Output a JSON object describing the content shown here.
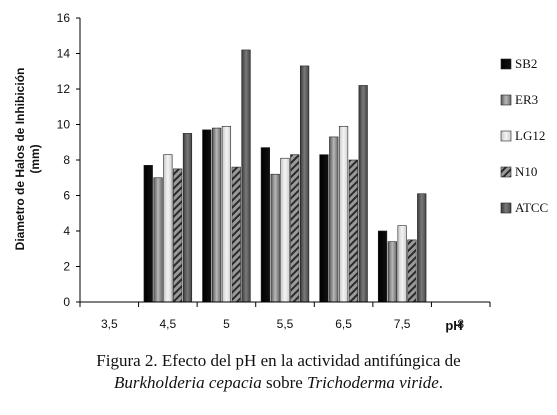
{
  "chart_data": {
    "type": "bar",
    "categories": [
      "3,5",
      "4,5",
      "5",
      "5,5",
      "6,5",
      "7,5",
      "8"
    ],
    "series": [
      {
        "name": "SB2",
        "values": [
          null,
          7.7,
          9.7,
          8.7,
          8.3,
          4.0,
          null
        ],
        "color": "#000000",
        "pattern": "solid"
      },
      {
        "name": "ER3",
        "values": [
          null,
          7.0,
          9.8,
          7.2,
          9.3,
          3.4,
          null
        ],
        "color": "#8a8a8a",
        "pattern": "gradient"
      },
      {
        "name": "LG12",
        "values": [
          null,
          8.3,
          9.9,
          8.1,
          9.9,
          4.3,
          null
        ],
        "color": "#e0e0e0",
        "pattern": "light"
      },
      {
        "name": "N10",
        "values": [
          null,
          7.5,
          7.6,
          8.3,
          8.0,
          3.5,
          null
        ],
        "color": "#707070",
        "pattern": "diagonal"
      },
      {
        "name": "ATCC",
        "values": [
          null,
          9.5,
          14.2,
          13.3,
          12.2,
          6.1,
          null
        ],
        "color": "#555555",
        "pattern": "dark"
      }
    ],
    "xlabel": "pH",
    "ylabel": "Diametro de Halos de Inhibición (mm)",
    "ylim": [
      0,
      16
    ],
    "yticks": [
      0,
      2,
      4,
      6,
      8,
      10,
      12,
      14,
      16
    ],
    "grid": false,
    "legend": "right"
  },
  "axes": {
    "ylabel_line1": "Diametro de Halos de Inhibición",
    "ylabel_line2": "(mm)",
    "xlabel": "pH"
  },
  "caption": {
    "line1": "Figura 2. Efecto del pH en la actividad antifúngica de",
    "species1": "Burkholderia cepacia",
    "connector": " sobre ",
    "species2": "Trichoderma viride",
    "end": "."
  }
}
